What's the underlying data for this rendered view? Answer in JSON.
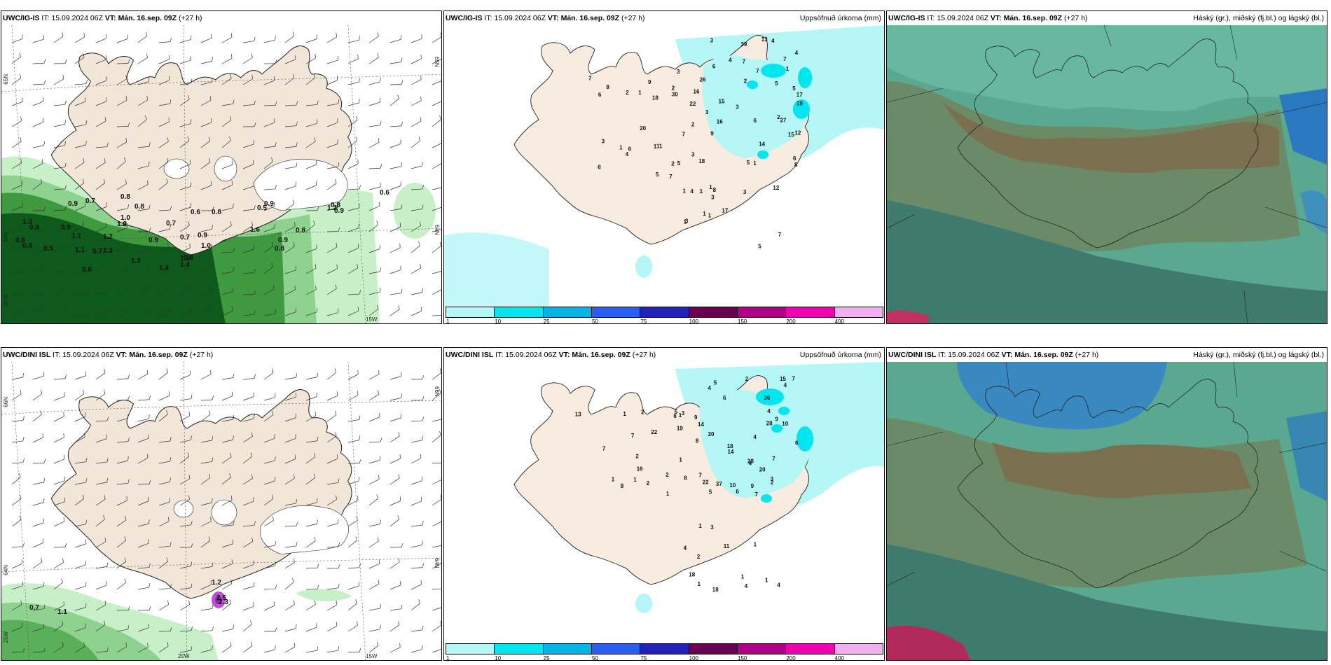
{
  "rows": [
    {
      "model": "UWC/IG-IS",
      "panels": [
        {
          "it_label": "IT:",
          "it": "15.09.2024 06Z",
          "vt_label": "VT:",
          "vt": "Mán. 16.sep. 09Z",
          "lead": "(+27 h)",
          "right": ""
        },
        {
          "it_label": "IT:",
          "it": "15.09.2024 06Z",
          "vt_label": "VT:",
          "vt": "Mán. 16.sep. 09Z",
          "lead": "(+27 h)",
          "right": "Uppsöfnuð úrkoma (mm)"
        },
        {
          "it_label": "IT:",
          "it": "15.09.2024 06Z",
          "vt_label": "VT:",
          "vt": "Mán. 16.sep. 09Z",
          "lead": "(+27 h)",
          "right": "Háský (gr.), miðský (fj.bl.) og lágský (bl.)"
        }
      ],
      "wind_axis_labels": {
        "lat_left": "65N",
        "lat_right": "65N",
        "lat_left2": "64N",
        "lat_right2": "64N",
        "lon1": "25W",
        "lon2": "15W"
      },
      "gust_labels": [
        "0.8",
        "0.9",
        "0.7",
        "0.8",
        "1.0",
        "0.6",
        "0.5",
        "0.6",
        "0.9",
        "0.8",
        "1.0",
        "0.9",
        "0.9",
        "1.0",
        "0.7",
        "0.8",
        "0.6",
        "0.8",
        "0.5",
        "0.9",
        "1.1",
        "1.2",
        "0.7",
        "1.3",
        "1.4",
        "1.5",
        "0.9",
        "0.8",
        "1.2",
        "0.8",
        "0.9",
        "1.1",
        "1.3",
        "1.4",
        "1.6",
        "1.0",
        "0.7",
        "0.8",
        "1.2",
        "0.9",
        "0.6"
      ],
      "precip_labels": [
        "6",
        "5",
        "7",
        "17",
        "15",
        "12",
        "16",
        "13",
        "15",
        "7",
        "26",
        "27",
        "5",
        "9",
        "7",
        "3",
        "3",
        "2",
        "3",
        "4",
        "6",
        "7",
        "3",
        "2",
        "2",
        "4",
        "5",
        "14",
        "5",
        "4",
        "18",
        "8",
        "22",
        "39",
        "16",
        "30",
        "19",
        "6",
        "1",
        "2",
        "1",
        "3",
        "1",
        "6",
        "2",
        "7",
        "1",
        "18",
        "8",
        "6",
        "7",
        "6",
        "5",
        "9",
        "3",
        "4",
        "2",
        "1",
        "11",
        "20",
        "7",
        "12",
        "17",
        "8",
        "3",
        "1",
        "4",
        "1",
        "1",
        "3",
        "1",
        "3",
        "1",
        "1",
        "5"
      ]
    },
    {
      "model": "UWC/DINI ISL",
      "panels": [
        {
          "it_label": "IT:",
          "it": "15.09.2024 06Z",
          "vt_label": "VT:",
          "vt": "Mán. 16.sep. 09Z",
          "lead": "(+27 h)",
          "right": ""
        },
        {
          "it_label": "IT:",
          "it": "15.09.2024 06Z",
          "vt_label": "VT:",
          "vt": "Mán. 16.sep. 09Z",
          "lead": "(+27 h)",
          "right": "Uppsöfnuð úrkoma (mm)"
        },
        {
          "it_label": "IT:",
          "it": "15.09.2024 06Z",
          "vt_label": "VT:",
          "vt": "Mán. 16.sep. 09Z",
          "lead": "(+27 h)",
          "right": "Háský (gr.), miðský (fj.bl.) og lágský (bl.)"
        }
      ],
      "wind_axis_labels": {
        "lat_left": "66N",
        "lat_right": "66N",
        "lat_left2": "64N",
        "lat_right2": "64N",
        "lon1": "25W",
        "lon2": "20W",
        "lon3": "15W"
      },
      "gust_labels": [
        "1.2",
        "0.7",
        "1.1",
        "2.5",
        "2.3"
      ],
      "precip_labels": [
        "7",
        "4",
        "7",
        "9",
        "9",
        "9",
        "6",
        "20",
        "14",
        "22",
        "8",
        "6",
        "18",
        "28",
        "28",
        "15",
        "19",
        "4",
        "7",
        "10",
        "3",
        "4",
        "5",
        "2",
        "4",
        "4",
        "8",
        "14",
        "6",
        "6",
        "20",
        "7",
        "36",
        "37",
        "5",
        "10",
        "2",
        "1",
        "1",
        "2",
        "1",
        "2",
        "3",
        "1",
        "2",
        "2",
        "1",
        "8",
        "16",
        "5",
        "1",
        "7",
        "7",
        "22",
        "13",
        "4",
        "1",
        "11",
        "18",
        "18",
        "4",
        "4",
        "1",
        "2",
        "3",
        "1",
        "1",
        "1"
      ]
    }
  ],
  "colorbar": {
    "ticks": [
      "1",
      "10",
      "25",
      "50",
      "75",
      "100",
      "150",
      "200",
      "400"
    ],
    "colors": [
      "#b5f6f6",
      "#00e6ee",
      "#00b5e6",
      "#2a5ef0",
      "#2222b8",
      "#6a0050",
      "#b0008a",
      "#f000b0",
      "#f0b0f0"
    ]
  }
}
